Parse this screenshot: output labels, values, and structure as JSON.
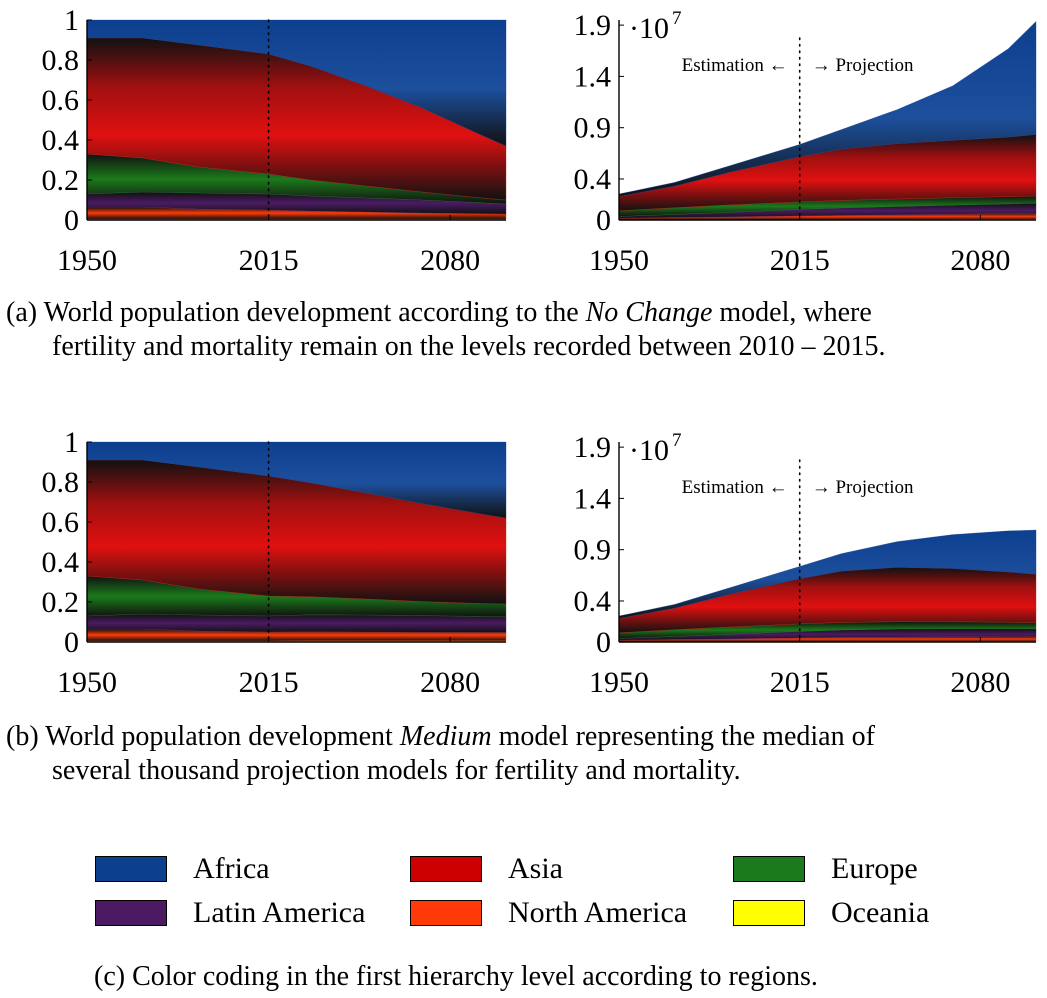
{
  "colors": {
    "Africa": "#0d3f8f",
    "Asia": "#e01010",
    "Europe": "#1b7a1b",
    "Latin America": "#4b1a63",
    "North America": "#ff3a08",
    "Oceania": "#ffff00",
    "dark": "#111111"
  },
  "chart_data": [
    {
      "type": "area",
      "id": "a-share",
      "stacked": "normalized",
      "x": [
        1950,
        1970,
        1990,
        2015,
        2030,
        2050,
        2070,
        2090,
        2100
      ],
      "xticks": [
        "1950",
        "2015",
        "2080"
      ],
      "yticks": [
        "0",
        "0.2",
        "0.4",
        "0.6",
        "0.8",
        "1"
      ],
      "ylim": [
        0,
        1
      ],
      "marker_x": 2015,
      "series": [
        {
          "name": "Oceania",
          "values": [
            0.005,
            0.005,
            0.005,
            0.005,
            0.005,
            0.005,
            0.005,
            0.005,
            0.005
          ]
        },
        {
          "name": "North America",
          "values": [
            0.06,
            0.06,
            0.05,
            0.045,
            0.04,
            0.035,
            0.03,
            0.027,
            0.025
          ]
        },
        {
          "name": "Latin America",
          "values": [
            0.065,
            0.075,
            0.08,
            0.08,
            0.075,
            0.07,
            0.065,
            0.055,
            0.05
          ]
        },
        {
          "name": "Europe",
          "values": [
            0.2,
            0.17,
            0.13,
            0.1,
            0.08,
            0.06,
            0.04,
            0.025,
            0.02
          ]
        },
        {
          "name": "Asia",
          "values": [
            0.58,
            0.6,
            0.61,
            0.6,
            0.57,
            0.5,
            0.42,
            0.32,
            0.27
          ]
        },
        {
          "name": "Africa",
          "values": [
            0.09,
            0.09,
            0.125,
            0.17,
            0.23,
            0.33,
            0.44,
            0.568,
            0.63
          ]
        }
      ]
    },
    {
      "type": "area",
      "id": "a-abs",
      "stacked": "absolute",
      "x": [
        1950,
        1970,
        1990,
        2015,
        2030,
        2050,
        2070,
        2090,
        2100
      ],
      "xticks": [
        "1950",
        "2015",
        "2080"
      ],
      "yticks": [
        "0",
        "0.4",
        "0.9",
        "1.4",
        "1.9"
      ],
      "ylim": [
        0,
        1.95
      ],
      "exponent": "·10",
      "exponent_power": "7",
      "marker_x": 2015,
      "annotation_left": "Estimation ←",
      "annotation_right": "→ Projection",
      "series": [
        {
          "name": "Oceania",
          "values": [
            0.002,
            0.002,
            0.003,
            0.004,
            0.005,
            0.006,
            0.007,
            0.008,
            0.009
          ]
        },
        {
          "name": "North America",
          "values": [
            0.016,
            0.023,
            0.028,
            0.036,
            0.04,
            0.045,
            0.05,
            0.055,
            0.058
          ]
        },
        {
          "name": "Latin America",
          "values": [
            0.017,
            0.029,
            0.044,
            0.063,
            0.072,
            0.081,
            0.088,
            0.094,
            0.097
          ]
        },
        {
          "name": "Europe",
          "values": [
            0.055,
            0.066,
            0.072,
            0.074,
            0.074,
            0.073,
            0.072,
            0.071,
            0.07
          ]
        },
        {
          "name": "Asia",
          "values": [
            0.14,
            0.21,
            0.32,
            0.44,
            0.5,
            0.54,
            0.56,
            0.58,
            0.6
          ]
        },
        {
          "name": "Africa",
          "values": [
            0.023,
            0.036,
            0.063,
            0.119,
            0.19,
            0.33,
            0.53,
            0.86,
            1.1
          ]
        }
      ]
    },
    {
      "type": "area",
      "id": "b-share",
      "stacked": "normalized",
      "x": [
        1950,
        1970,
        1990,
        2015,
        2030,
        2050,
        2070,
        2090,
        2100
      ],
      "xticks": [
        "1950",
        "2015",
        "2080"
      ],
      "yticks": [
        "0",
        "0.2",
        "0.4",
        "0.6",
        "0.8",
        "1"
      ],
      "ylim": [
        0,
        1
      ],
      "marker_x": 2015,
      "series": [
        {
          "name": "Oceania",
          "values": [
            0.005,
            0.005,
            0.005,
            0.005,
            0.006,
            0.006,
            0.006,
            0.006,
            0.006
          ]
        },
        {
          "name": "North America",
          "values": [
            0.06,
            0.06,
            0.05,
            0.045,
            0.045,
            0.044,
            0.043,
            0.042,
            0.042
          ]
        },
        {
          "name": "Latin America",
          "values": [
            0.065,
            0.075,
            0.08,
            0.08,
            0.085,
            0.085,
            0.083,
            0.08,
            0.078
          ]
        },
        {
          "name": "Europe",
          "values": [
            0.2,
            0.17,
            0.13,
            0.1,
            0.09,
            0.08,
            0.07,
            0.065,
            0.064
          ]
        },
        {
          "name": "Asia",
          "values": [
            0.58,
            0.6,
            0.61,
            0.6,
            0.57,
            0.53,
            0.49,
            0.45,
            0.43
          ]
        },
        {
          "name": "Africa",
          "values": [
            0.09,
            0.09,
            0.125,
            0.17,
            0.204,
            0.255,
            0.308,
            0.357,
            0.38
          ]
        }
      ]
    },
    {
      "type": "area",
      "id": "b-abs",
      "stacked": "absolute",
      "x": [
        1950,
        1970,
        1990,
        2015,
        2030,
        2050,
        2070,
        2090,
        2100
      ],
      "xticks": [
        "1950",
        "2015",
        "2080"
      ],
      "yticks": [
        "0",
        "0.4",
        "0.9",
        "1.4",
        "1.9"
      ],
      "ylim": [
        0,
        1.95
      ],
      "exponent": "·10",
      "exponent_power": "7",
      "marker_x": 2015,
      "annotation_left": "Estimation ←",
      "annotation_right": "→ Projection",
      "series": [
        {
          "name": "Oceania",
          "values": [
            0.002,
            0.002,
            0.003,
            0.004,
            0.005,
            0.006,
            0.006,
            0.007,
            0.007
          ]
        },
        {
          "name": "North America",
          "values": [
            0.016,
            0.023,
            0.028,
            0.036,
            0.04,
            0.043,
            0.046,
            0.048,
            0.049
          ]
        },
        {
          "name": "Latin America",
          "values": [
            0.017,
            0.029,
            0.044,
            0.063,
            0.072,
            0.078,
            0.078,
            0.075,
            0.072
          ]
        },
        {
          "name": "Europe",
          "values": [
            0.055,
            0.066,
            0.072,
            0.074,
            0.074,
            0.071,
            0.067,
            0.063,
            0.063
          ]
        },
        {
          "name": "Asia",
          "values": [
            0.14,
            0.21,
            0.32,
            0.44,
            0.5,
            0.53,
            0.52,
            0.49,
            0.47
          ]
        },
        {
          "name": "Africa",
          "values": [
            0.023,
            0.036,
            0.063,
            0.119,
            0.17,
            0.25,
            0.33,
            0.4,
            0.43
          ]
        }
      ]
    }
  ],
  "captions": {
    "a_prefix": "(a) World population development according to the ",
    "a_italic": "No Change",
    "a_suffix": " model, where",
    "a_line2": "fertility and mortality remain on the levels recorded between 2010 – 2015.",
    "b_prefix": "(b) World population development ",
    "b_italic": "Medium",
    "b_suffix": " model representing the median of",
    "b_line2": "several thousand projection models for fertility and mortality.",
    "c": "(c) Color coding in the first hierarchy level according to regions."
  },
  "legend": [
    {
      "label": "Africa",
      "color": "#0d3f8f"
    },
    {
      "label": "Asia",
      "color": "#cc0000"
    },
    {
      "label": "Europe",
      "color": "#1b7a1b"
    },
    {
      "label": "Latin America",
      "color": "#4b1a63"
    },
    {
      "label": "North America",
      "color": "#ff3a08"
    },
    {
      "label": "Oceania",
      "color": "#ffff00"
    }
  ]
}
